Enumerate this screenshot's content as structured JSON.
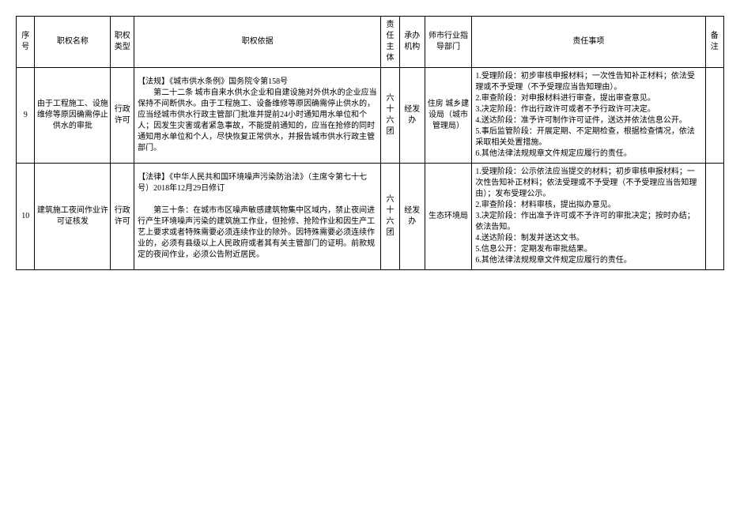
{
  "headers": {
    "seq": "序号",
    "name": "职权名称",
    "type": "职权类型",
    "basis": "职权依据",
    "subject": "责任主体",
    "agency": "承办机构",
    "guide": "师市行业指导部门",
    "duty": "责任事项",
    "remark": "备注"
  },
  "rows": [
    {
      "seq": "9",
      "name": "由于工程施工、设施维修等原因确需停止供水的审批",
      "type": "行政许可",
      "basis": "【法规】《城市供水条例》国务院令第158号\n　　第二十二条 城市自来水供水企业和自建设施对外供水的企业应当保持不间断供水。由于工程施工、设备维修等原因确需停止供水的，应当经城市供水行政主管部门批准并提前24小时通知用水单位和个人；因发生灾害或者紧急事故，不能提前通知的，应当在抢修的同时通知用水单位和个人，尽快恢复正常供水，并报告城市供水行政主管部门。",
      "subject": "六十六团",
      "agency": "经发办",
      "guide": "住房 城乡建设局（城市管理局）",
      "duty": "1.受理阶段：初步审核申报材料；一次性告知补正材料；依法受理或不予受理（不予受理应当告知理由）。\n2.审查阶段：对申报材料进行审查，提出审查意见。\n3.决定阶段：作出行政许可或者不予行政许可决定。\n4.送达阶段：准予许可制作许可证件，送达并依法信息公开。\n5.事后监管阶段：开展定期、不定期检查，根据检查情况，依法采取相关处置措施。\n6.其他法律法规规章文件规定应履行的责任。",
      "remark": ""
    },
    {
      "seq": "10",
      "name": "建筑施工夜间作业许可证核发",
      "type": "行政许可",
      "basis": "【法律】《中华人民共和国环境噪声污染防治法》（主席令第七十七号）2018年12月29日修订\n\n　　第三十条：在城市市区噪声敏感建筑物集中区域内，禁止夜间进行产生环境噪声污染的建筑施工作业，但抢修、抢险作业和因生产工艺上要求或者特殊需要必须连续作业的除外。因特殊需要必须连续作业的，必须有县级以上人民政府或者其有关主管部门的证明。前款规定的夜间作业，必须公告附近居民。",
      "subject": "六十六团",
      "agency": "经发办",
      "guide": "生态环境局",
      "duty": "1.受理阶段：公示依法应当提交的材料；初步审核申报材料；一次性告知补正材料；依法受理或不予受理（不予受理应当告知理由）；发布受理公示。\n2.审查阶段：材料审核，提出拟办意见。\n3.决定阶段：作出准予许可或不予许可的审批决定；按时办结；依法告知。\n4.送达阶段：制发并送达文书。\n5.信息公开：定期发布审批结果。\n6.其他法律法规规章文件规定应履行的责任。",
      "remark": ""
    }
  ],
  "styling": {
    "font_family": "SimSun",
    "font_size": 10,
    "border_color": "#000000",
    "background_color": "#ffffff",
    "col_widths": {
      "seq": 22,
      "name": 90,
      "type": 28,
      "basis": 293,
      "subject": 22,
      "agency": 30,
      "guide": 56,
      "duty": 277,
      "remark": 22
    }
  }
}
